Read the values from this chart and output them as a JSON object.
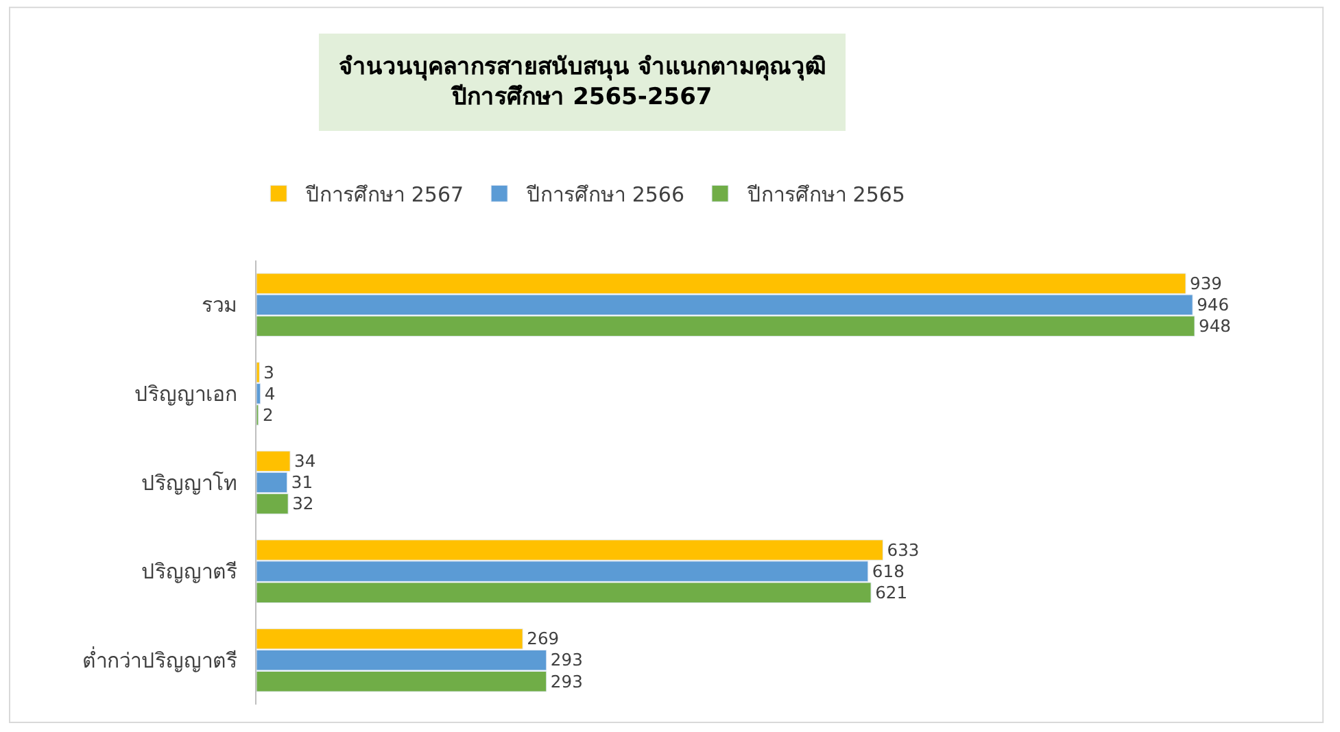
{
  "chart_data": {
    "type": "bar",
    "orientation": "horizontal",
    "title": "จำนวนบุคลากรสายสนับสนุน จำแนกตามคุณวุฒิ\nปีการศึกษา 2565-2567",
    "categories": [
      "รวม",
      "ปริญญาเอก",
      "ปริญญาโท",
      "ปริญญาตรี",
      "ต่ำกว่าปริญญาตรี"
    ],
    "series": [
      {
        "name": "ปีการศึกษา 2567",
        "color": "#ffc000",
        "values": [
          939,
          3,
          34,
          633,
          269
        ]
      },
      {
        "name": "ปีการศึกษา 2566",
        "color": "#5b9bd5",
        "values": [
          946,
          4,
          31,
          618,
          293
        ]
      },
      {
        "name": "ปีการศึกษา 2565",
        "color": "#70ad47",
        "values": [
          948,
          2,
          32,
          621,
          293
        ]
      }
    ],
    "data_labels": true,
    "legend": "top",
    "tick_labels": "y"
  }
}
